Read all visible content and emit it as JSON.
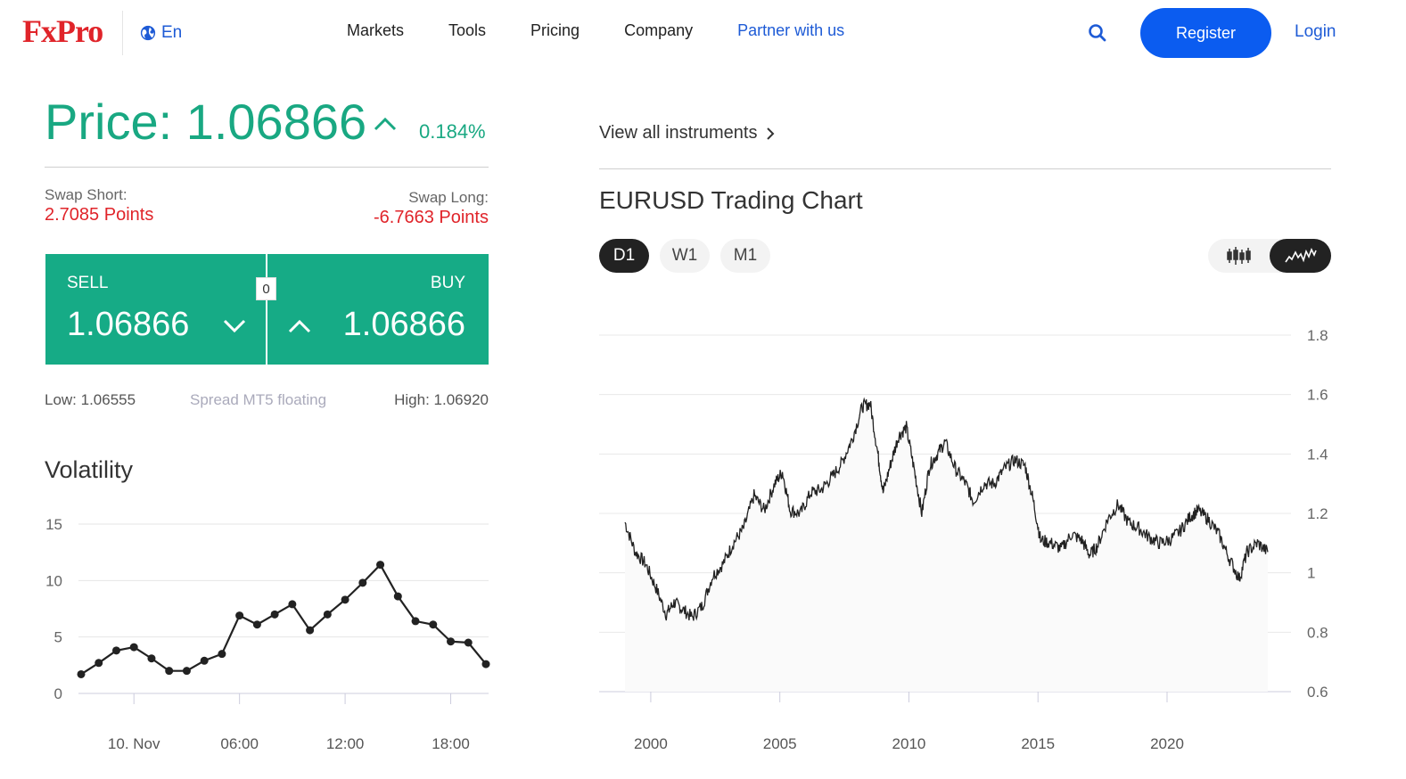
{
  "header": {
    "logo": "FxPro",
    "language": "En",
    "nav": [
      "Markets",
      "Tools",
      "Pricing",
      "Company",
      "Partner with us"
    ],
    "register_label": "Register",
    "login_label": "Login",
    "icons": {
      "globe": "globe-icon",
      "search": "search-icon"
    },
    "colors": {
      "brand_red": "#e0242a",
      "link_blue": "#1e5bd6",
      "button_blue": "#0b5cf0"
    }
  },
  "quote": {
    "price_label": "Price: 1.06866",
    "change": "0.184%",
    "direction": "up",
    "swap_short_label": "Swap Short:",
    "swap_short_value": "2.7085 Points",
    "swap_long_label": "Swap Long:",
    "swap_long_value": "-6.7663 Points",
    "sell_label": "SELL",
    "sell_price": "1.06866",
    "buy_label": "BUY",
    "buy_price": "1.06866",
    "spread_value": "0",
    "low": "Low: 1.06555",
    "spread_type": "Spread MT5 floating",
    "high": "High: 1.06920",
    "colors": {
      "positive": "#19a882",
      "negative": "#e0242a",
      "trade_bg": "#16ab86"
    }
  },
  "volatility": {
    "title": "Volatility"
  },
  "instruments": {
    "view_all": "View all instruments",
    "chart_title": "EURUSD Trading Chart",
    "timeframes": [
      "D1",
      "W1",
      "M1"
    ],
    "active_timeframe": "D1",
    "chart_types": [
      "candlestick-icon",
      "line-chart-icon"
    ],
    "active_chart_type": "line"
  },
  "chart_data": [
    {
      "type": "line",
      "title": "Volatility",
      "x_ticks": [
        "10. Nov",
        "06:00",
        "12:00",
        "18:00"
      ],
      "ylim": [
        0,
        15
      ],
      "y_ticks": [
        0,
        5,
        10,
        15
      ],
      "grid": true,
      "values": [
        1.7,
        2.7,
        3.8,
        4.1,
        3.1,
        2.0,
        2.0,
        2.9,
        3.5,
        6.9,
        6.1,
        7.0,
        7.9,
        5.6,
        7.0,
        8.3,
        9.8,
        11.4,
        8.6,
        6.4,
        6.1,
        4.6,
        4.5,
        2.6
      ],
      "tick_positions": [
        3,
        9,
        15,
        21
      ]
    },
    {
      "type": "line",
      "title": "EURUSD Trading Chart",
      "xlim": [
        1998.0,
        2024.8
      ],
      "ylim": [
        0.6,
        1.8
      ],
      "y_ticks": [
        "1.8",
        "1.6",
        "1.4",
        "1.2",
        "1",
        "0.8",
        "0.6"
      ],
      "x_ticks": [
        2000,
        2005,
        2010,
        2015,
        2020
      ],
      "grid": true,
      "x": [
        1999.0,
        1999.4,
        1999.8,
        2000.2,
        2000.6,
        2000.9,
        2001.2,
        2001.6,
        2002.0,
        2002.4,
        2002.8,
        2003.2,
        2003.6,
        2004.0,
        2004.4,
        2004.8,
        2005.1,
        2005.4,
        2005.8,
        2006.2,
        2006.6,
        2007.0,
        2007.4,
        2007.8,
        2008.2,
        2008.5,
        2008.8,
        2009.0,
        2009.3,
        2009.6,
        2009.9,
        2010.2,
        2010.5,
        2010.8,
        2011.1,
        2011.4,
        2011.8,
        2012.2,
        2012.5,
        2012.9,
        2013.3,
        2013.7,
        2014.1,
        2014.5,
        2014.8,
        2015.1,
        2015.5,
        2015.9,
        2016.3,
        2016.7,
        2017.0,
        2017.3,
        2017.7,
        2018.1,
        2018.5,
        2018.9,
        2019.3,
        2019.7,
        2020.1,
        2020.5,
        2020.9,
        2021.2,
        2021.6,
        2022.0,
        2022.4,
        2022.8,
        2023.1,
        2023.5,
        2023.9
      ],
      "y": [
        1.17,
        1.07,
        1.03,
        0.95,
        0.86,
        0.9,
        0.88,
        0.85,
        0.89,
        0.99,
        1.03,
        1.1,
        1.15,
        1.26,
        1.21,
        1.3,
        1.34,
        1.21,
        1.2,
        1.27,
        1.28,
        1.32,
        1.37,
        1.45,
        1.56,
        1.57,
        1.4,
        1.27,
        1.37,
        1.46,
        1.49,
        1.35,
        1.2,
        1.36,
        1.4,
        1.44,
        1.35,
        1.3,
        1.24,
        1.3,
        1.3,
        1.35,
        1.38,
        1.36,
        1.25,
        1.11,
        1.1,
        1.08,
        1.13,
        1.11,
        1.06,
        1.09,
        1.18,
        1.23,
        1.17,
        1.15,
        1.12,
        1.1,
        1.11,
        1.14,
        1.19,
        1.21,
        1.18,
        1.13,
        1.05,
        0.98,
        1.07,
        1.1,
        1.07
      ]
    }
  ]
}
